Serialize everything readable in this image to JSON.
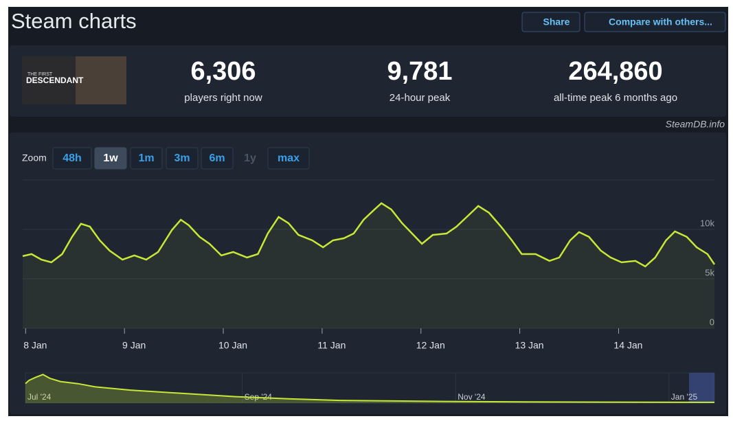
{
  "header": {
    "title": "Steam charts",
    "buttons": [
      "Share",
      "Compare with others..."
    ]
  },
  "game": {
    "image_text": [
      "THE FIRST",
      "DESCENDANT"
    ]
  },
  "stats": [
    {
      "value": "6,306",
      "label": "players right now"
    },
    {
      "value": "9,781",
      "label": "24-hour peak"
    },
    {
      "value": "264,860",
      "label": "all-time peak 6 months ago"
    }
  ],
  "watermark": "SteamDB.info",
  "zoom": {
    "label": "Zoom",
    "options": [
      "48h",
      "1w",
      "1m",
      "3m",
      "6m",
      "1y",
      "max"
    ],
    "active": "1w",
    "disabled": "1y"
  },
  "chart_data": [
    {
      "type": "line",
      "color": "#c6e837",
      "x": [
        -0.03,
        0.06,
        0.16,
        0.26,
        0.37,
        0.47,
        0.56,
        0.65,
        0.75,
        0.85,
        0.98,
        1.1,
        1.22,
        1.34,
        1.48,
        1.57,
        1.65,
        1.76,
        1.86,
        1.98,
        2.1,
        2.24,
        2.35,
        2.45,
        2.56,
        2.66,
        2.76,
        2.9,
        3.01,
        3.11,
        3.22,
        3.32,
        3.42,
        3.53,
        3.6,
        3.7,
        3.81,
        3.91,
        4.01,
        4.12,
        4.26,
        4.36,
        4.47,
        4.58,
        4.69,
        4.81,
        4.92,
        5.02,
        5.16,
        5.3,
        5.4,
        5.51,
        5.6,
        5.7,
        5.82,
        5.92,
        6.03,
        6.17,
        6.27,
        6.37,
        6.48,
        6.57,
        6.69,
        6.79,
        6.9,
        6.97
      ],
      "values": [
        7290,
        7500,
        6940,
        6670,
        7500,
        9240,
        10560,
        10280,
        8890,
        7850,
        6940,
        7360,
        6940,
        7710,
        9930,
        10970,
        10420,
        9240,
        8540,
        7360,
        7710,
        7150,
        7500,
        9580,
        11250,
        10620,
        9440,
        8890,
        8190,
        8890,
        9100,
        9580,
        10970,
        12010,
        12640,
        12010,
        10620,
        9580,
        8540,
        9440,
        9580,
        10280,
        11320,
        12360,
        11670,
        10280,
        8890,
        7500,
        7500,
        6810,
        7150,
        8890,
        9720,
        9240,
        7850,
        7150,
        6670,
        6810,
        6250,
        7150,
        8890,
        9790,
        9240,
        8190,
        7500,
        6460
      ],
      "xlim": [
        -0.03,
        6.97
      ],
      "ylim": [
        0,
        15000
      ],
      "xticks": [
        {
          "value": 0,
          "label": "8 Jan"
        },
        {
          "value": 1,
          "label": "9 Jan"
        },
        {
          "value": 2,
          "label": "10 Jan"
        },
        {
          "value": 3,
          "label": "11 Jan"
        },
        {
          "value": 4,
          "label": "12 Jan"
        },
        {
          "value": 5,
          "label": "13 Jan"
        },
        {
          "value": 6,
          "label": "14 Jan"
        }
      ],
      "yticks": [
        0,
        {
          "value": 5000,
          "label": "5k"
        },
        {
          "value": 10000,
          "label": "10k"
        }
      ],
      "grid": true
    },
    {
      "type": "area",
      "color": "#c6e837",
      "x": [
        0,
        1,
        3,
        5,
        7,
        10,
        15,
        20,
        30,
        45,
        60,
        75,
        90,
        120,
        150,
        180,
        197
      ],
      "values": [
        180000,
        210000,
        240000,
        264860,
        230000,
        200000,
        180000,
        150000,
        120000,
        90000,
        60000,
        40000,
        25000,
        15000,
        10000,
        8000,
        7000
      ],
      "xlim": [
        0,
        197
      ],
      "ylim": [
        0,
        280000
      ],
      "xticks": [
        {
          "value": 0,
          "label": "Jul '24"
        },
        {
          "value": 62,
          "label": "Sep '24"
        },
        {
          "value": 123,
          "label": "Nov '24"
        },
        {
          "value": 184,
          "label": "Jan '25"
        }
      ]
    }
  ]
}
